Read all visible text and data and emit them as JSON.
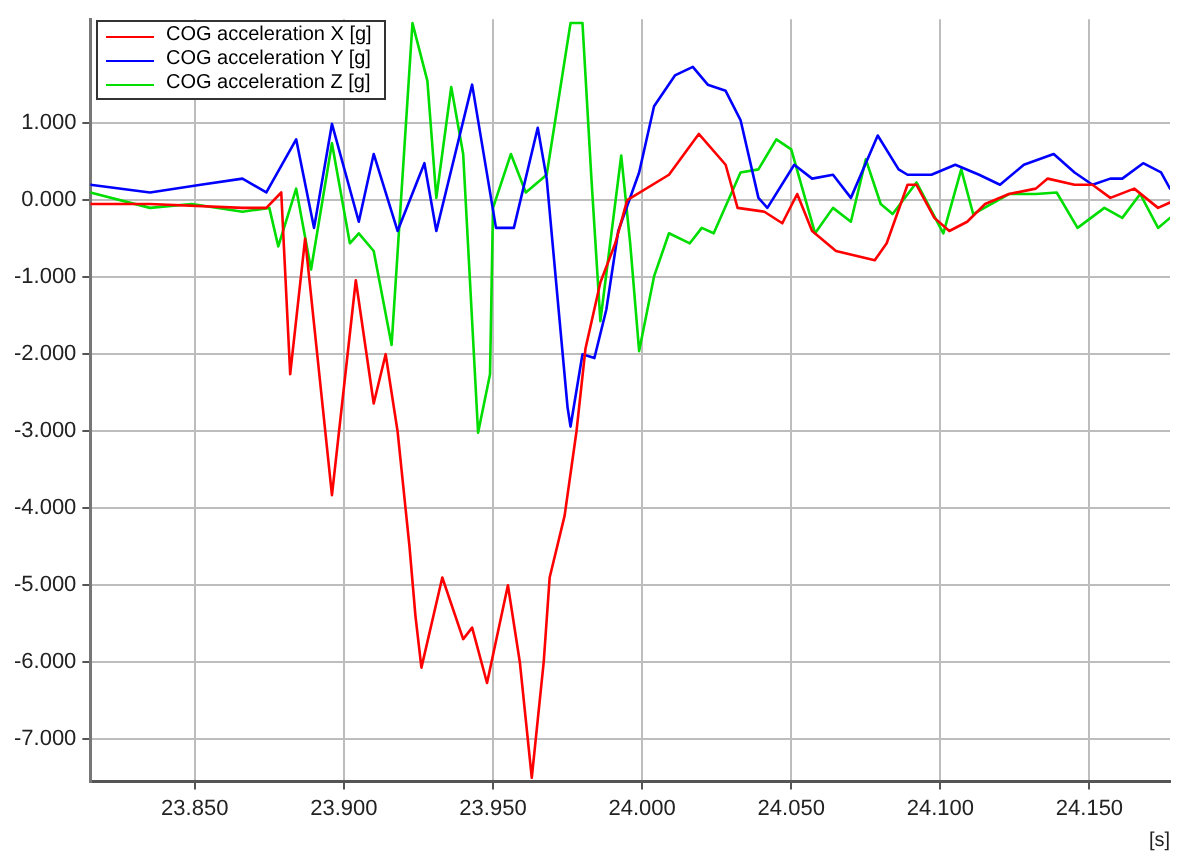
{
  "chart_data": {
    "type": "line",
    "xlabel": "[s]",
    "xlim": [
      23.815,
      24.177
    ],
    "xticks": [
      {
        "value": 23.85,
        "label": "23.850"
      },
      {
        "value": 23.9,
        "label": "23.900"
      },
      {
        "value": 23.95,
        "label": "23.950"
      },
      {
        "value": 24.0,
        "label": "24.000"
      },
      {
        "value": 24.05,
        "label": "24.050"
      },
      {
        "value": 24.1,
        "label": "24.100"
      },
      {
        "value": 24.15,
        "label": "24.150"
      }
    ],
    "ylim": [
      -7.55,
      2.35
    ],
    "yticks": [
      {
        "value": -7,
        "label": "-7.000"
      },
      {
        "value": -6,
        "label": "-6.000"
      },
      {
        "value": -5,
        "label": "-5.000"
      },
      {
        "value": -4,
        "label": "-4.000"
      },
      {
        "value": -3,
        "label": "-3.000"
      },
      {
        "value": -2,
        "label": "-2.000"
      },
      {
        "value": -1,
        "label": "-1.000"
      },
      {
        "value": 0,
        "label": "0.000"
      },
      {
        "value": 1,
        "label": "1.000"
      }
    ],
    "grid": true,
    "legend": "top left",
    "marker": "none",
    "line_style": "solid",
    "series": [
      {
        "name": "COG acceleration X [g]",
        "color": "#ff0000",
        "x": [
          23.815,
          23.835,
          23.866,
          23.874,
          23.879,
          23.882,
          23.887,
          23.896,
          23.904,
          23.91,
          23.914,
          23.918,
          23.922,
          23.924,
          23.926,
          23.933,
          23.94,
          23.943,
          23.948,
          23.955,
          23.959,
          23.963,
          23.967,
          23.969,
          23.974,
          23.978,
          23.981,
          23.986,
          23.991,
          23.995,
          24.009,
          24.019,
          24.028,
          24.032,
          24.041,
          24.047,
          24.052,
          24.057,
          24.065,
          24.078,
          24.082,
          24.089,
          24.092,
          24.098,
          24.103,
          24.109,
          24.115,
          24.123,
          24.132,
          24.136,
          24.145,
          24.151,
          24.157,
          24.165,
          24.173,
          24.177
        ],
        "values": [
          -0.05,
          -0.05,
          -0.1,
          -0.1,
          0.1,
          -2.26,
          -0.5,
          -3.83,
          -1.04,
          -2.64,
          -2.0,
          -3.0,
          -4.5,
          -5.4,
          -6.07,
          -4.9,
          -5.7,
          -5.55,
          -6.27,
          -5.0,
          -6.0,
          -7.5,
          -6.0,
          -4.9,
          -4.1,
          -3.0,
          -1.93,
          -1.07,
          -0.56,
          0.0,
          0.33,
          0.86,
          0.46,
          -0.1,
          -0.15,
          -0.3,
          0.08,
          -0.4,
          -0.66,
          -0.78,
          -0.56,
          0.2,
          0.2,
          -0.23,
          -0.4,
          -0.28,
          -0.05,
          0.08,
          0.15,
          0.28,
          0.2,
          0.2,
          0.03,
          0.15,
          -0.1,
          -0.03
        ]
      },
      {
        "name": "COG acceleration Y [g]",
        "color": "#0000ff",
        "x": [
          23.815,
          23.835,
          23.852,
          23.866,
          23.874,
          23.884,
          23.89,
          23.896,
          23.905,
          23.91,
          23.918,
          23.927,
          23.931,
          23.943,
          23.951,
          23.957,
          23.965,
          23.968,
          23.972,
          23.975,
          23.976,
          23.98,
          23.984,
          23.988,
          23.992,
          23.999,
          24.004,
          24.011,
          24.017,
          24.022,
          24.028,
          24.033,
          24.039,
          24.042,
          24.051,
          24.057,
          24.064,
          24.07,
          24.079,
          24.086,
          24.089,
          24.097,
          24.105,
          24.113,
          24.12,
          24.128,
          24.138,
          24.145,
          24.151,
          24.157,
          24.161,
          24.168,
          24.174,
          24.177
        ],
        "values": [
          0.2,
          0.1,
          0.2,
          0.28,
          0.1,
          0.79,
          -0.36,
          0.99,
          -0.28,
          0.6,
          -0.4,
          0.48,
          -0.4,
          1.5,
          -0.36,
          -0.36,
          0.94,
          0.28,
          -1.42,
          -2.69,
          -2.94,
          -2.0,
          -2.05,
          -1.42,
          -0.4,
          0.36,
          1.22,
          1.62,
          1.73,
          1.5,
          1.42,
          1.04,
          0.03,
          -0.1,
          0.46,
          0.28,
          0.33,
          0.03,
          0.84,
          0.4,
          0.33,
          0.33,
          0.46,
          0.33,
          0.2,
          0.46,
          0.6,
          0.36,
          0.2,
          0.28,
          0.28,
          0.48,
          0.36,
          0.15
        ]
      },
      {
        "name": "COG acceleration Z [g]",
        "color": "#00dd00",
        "x": [
          23.815,
          23.835,
          23.849,
          23.866,
          23.875,
          23.878,
          23.884,
          23.889,
          23.896,
          23.902,
          23.905,
          23.91,
          23.916,
          23.923,
          23.928,
          23.931,
          23.936,
          23.94,
          23.945,
          23.949,
          23.95,
          23.956,
          23.961,
          23.968,
          23.976,
          23.98,
          23.983,
          23.986,
          23.993,
          23.996,
          23.999,
          24.004,
          24.009,
          24.016,
          24.02,
          24.024,
          24.033,
          24.039,
          24.045,
          24.05,
          24.058,
          24.064,
          24.07,
          24.075,
          24.08,
          24.084,
          24.092,
          24.101,
          24.107,
          24.111,
          24.123,
          24.132,
          24.139,
          24.146,
          24.155,
          24.161,
          24.167,
          24.173,
          24.177
        ],
        "values": [
          0.1,
          -0.1,
          -0.05,
          -0.15,
          -0.1,
          -0.6,
          0.15,
          -0.9,
          0.74,
          -0.56,
          -0.43,
          -0.66,
          -1.88,
          2.3,
          1.55,
          0.03,
          1.47,
          0.6,
          -3.02,
          -2.26,
          -0.1,
          0.6,
          0.1,
          0.33,
          2.3,
          2.3,
          0.28,
          -1.57,
          0.58,
          -0.56,
          -1.96,
          -0.99,
          -0.43,
          -0.56,
          -0.36,
          -0.43,
          0.36,
          0.4,
          0.79,
          0.66,
          -0.43,
          -0.1,
          -0.28,
          0.53,
          -0.05,
          -0.18,
          0.23,
          -0.43,
          0.4,
          -0.18,
          0.08,
          0.08,
          0.1,
          -0.36,
          -0.1,
          -0.23,
          0.08,
          -0.36,
          -0.23
        ]
      }
    ]
  }
}
